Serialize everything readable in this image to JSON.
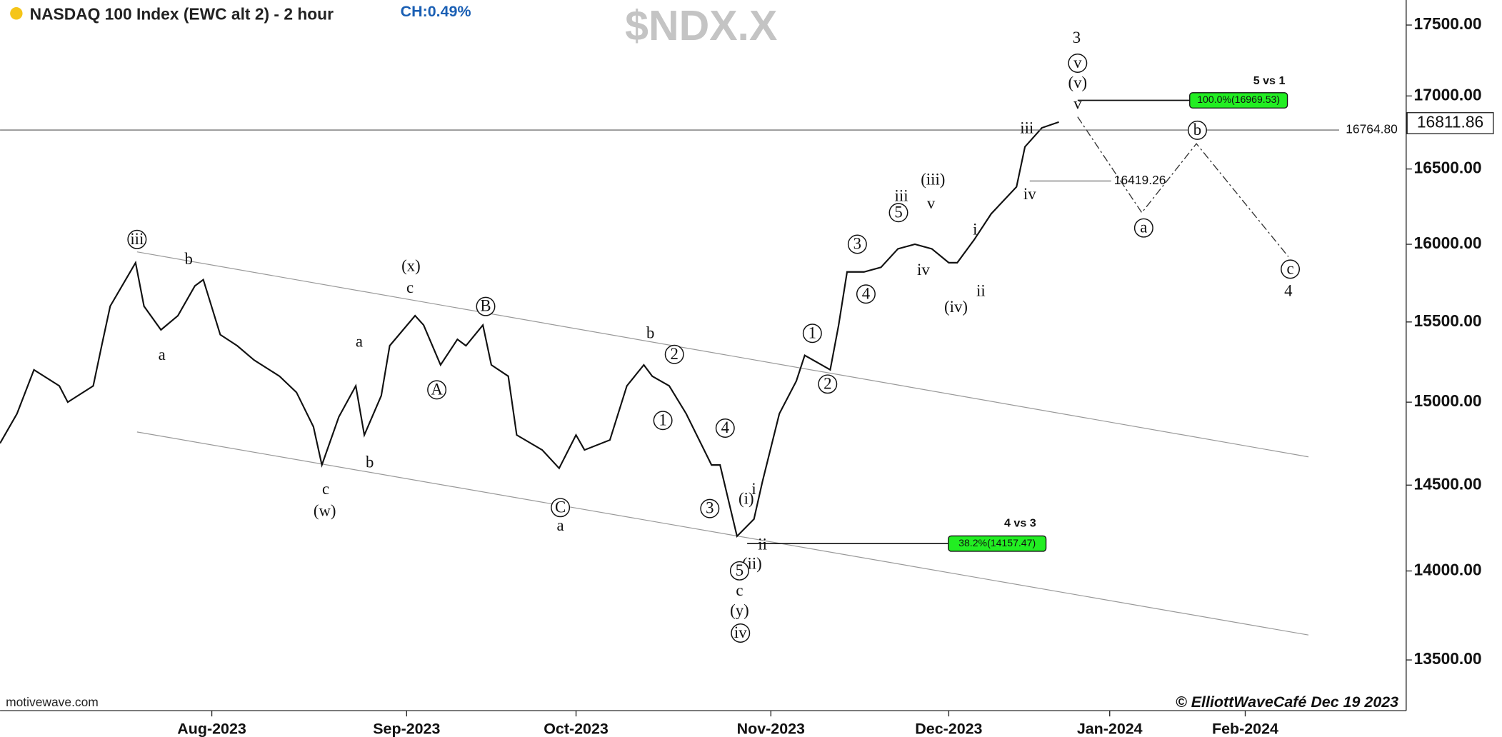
{
  "chart_data": {
    "type": "line",
    "title": "NASDAQ 100 Index (EWC alt 2) - 2 hour",
    "change": "CH:0.49%",
    "symbol": "$NDX.X",
    "source": "motivewave.com",
    "credit": "© ElliottWaveCafé Dec 19 2023",
    "log_scale": true,
    "xlim": [
      -25,
      141
    ],
    "xticks": [
      {
        "value": 0,
        "label": "Aug-2023"
      },
      {
        "value": 23,
        "label": "Sep-2023"
      },
      {
        "value": 43,
        "label": "Oct-2023"
      },
      {
        "value": 66,
        "label": "Nov-2023"
      },
      {
        "value": 87,
        "label": "Dec-2023"
      },
      {
        "value": 106,
        "label": "Jan-2024"
      },
      {
        "value": 122,
        "label": "Feb-2024"
      }
    ],
    "ylim": [
      13223,
      17680
    ],
    "yticks": [
      {
        "value": 13500,
        "label": "13500.00"
      },
      {
        "value": 14000,
        "label": "14000.00"
      },
      {
        "value": 14500,
        "label": "14500.00"
      },
      {
        "value": 15000,
        "label": "15000.00"
      },
      {
        "value": 15500,
        "label": "15500.00"
      },
      {
        "value": 16000,
        "label": "16000.00"
      },
      {
        "value": 16500,
        "label": "16500.00"
      },
      {
        "value": 17000,
        "label": "17000.00"
      },
      {
        "value": 17500,
        "label": "17500.00"
      }
    ],
    "series": [
      {
        "name": "$NDX.X",
        "color": "#111111",
        "x": [
          -25,
          -23,
          -21,
          -18,
          -17,
          -14,
          -13,
          -12,
          -9,
          -8,
          -6,
          -4,
          -2,
          -1,
          1,
          3,
          5,
          8,
          10,
          12,
          13,
          15,
          17,
          18,
          20,
          21,
          24,
          25,
          27,
          29,
          30,
          32,
          33,
          35,
          36,
          39,
          41,
          43,
          44,
          47,
          49,
          51,
          52,
          54,
          56,
          59,
          60,
          62,
          64,
          65,
          67,
          69,
          70,
          73,
          74,
          75,
          77,
          79,
          81,
          83,
          85,
          87,
          88,
          90,
          92,
          95,
          96,
          98,
          100
        ],
        "values": [
          14750,
          14930,
          15200,
          15100,
          15000,
          15100,
          15350,
          15600,
          15880,
          15600,
          15450,
          15540,
          15730,
          15770,
          15420,
          15350,
          15260,
          15160,
          15060,
          14850,
          14620,
          14910,
          15100,
          14800,
          15040,
          15350,
          15540,
          15480,
          15230,
          15390,
          15350,
          15480,
          15230,
          15160,
          14800,
          14710,
          14600,
          14800,
          14710,
          14770,
          15100,
          15230,
          15160,
          15100,
          14930,
          14620,
          14620,
          14200,
          14300,
          14520,
          14930,
          15130,
          15290,
          15200,
          15480,
          15820,
          15820,
          15850,
          15970,
          16000,
          15970,
          15880,
          15880,
          16030,
          16200,
          16380,
          16650,
          16780,
          16820
        ]
      }
    ],
    "last_price": 16811.86,
    "levels": [
      {
        "value": 16764.8,
        "label": "16764.80"
      },
      16419.26
    ],
    "fib_levels": [
      {
        "value": 16969.53,
        "label": "100.0%(16969.53)",
        "note": "5 vs 1"
      },
      {
        "value": 14157.47,
        "label": "38.2%(14157.47)",
        "note": "4 vs 3"
      }
    ],
    "annotations": [
      "3",
      "v",
      "(v)",
      "v",
      "iii",
      "iv",
      "b",
      "a",
      "c",
      "4",
      "(iii)",
      "iii",
      "v",
      "5",
      "3",
      "4",
      "iv",
      "(iv)",
      "i",
      "ii",
      "1",
      "2",
      "iii",
      "b",
      "a",
      "(x)",
      "c",
      "B",
      "a",
      "A",
      "c",
      "(w)",
      "b",
      "C",
      "a",
      "b",
      "2",
      "1",
      "4",
      "3",
      "(i)",
      "i",
      "ii",
      "(ii)",
      "5",
      "c",
      "(y)",
      "iv"
    ]
  }
}
